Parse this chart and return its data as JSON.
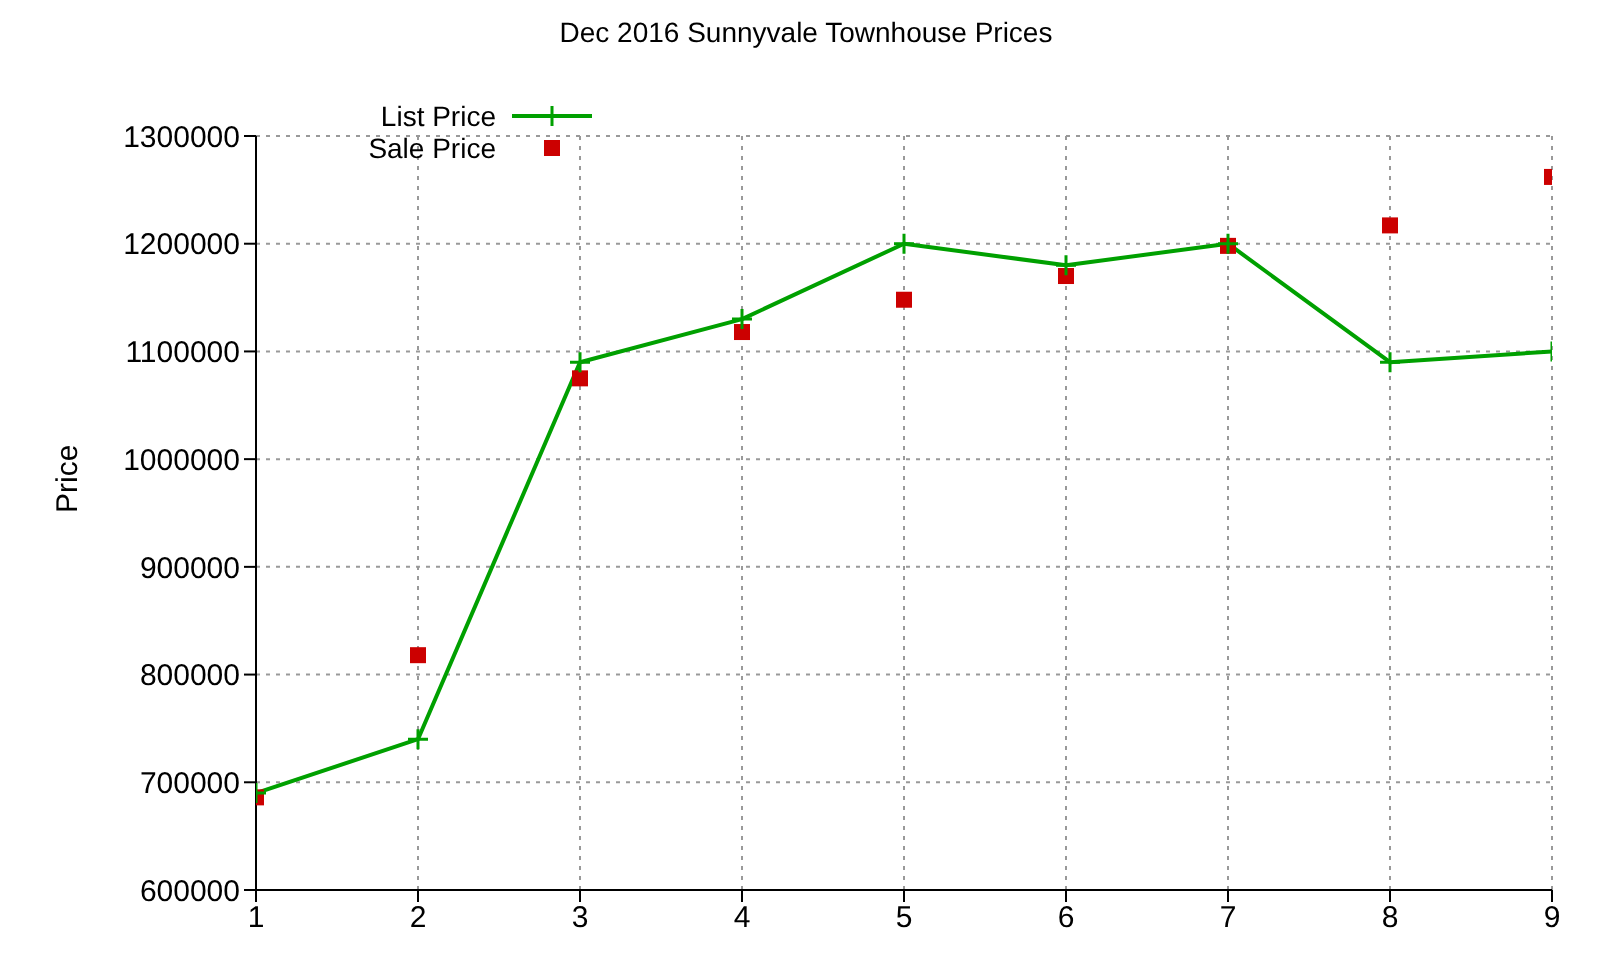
{
  "chart_data": {
    "type": "line",
    "title": "Dec 2016 Sunnyvale Townhouse Prices",
    "ylabel": "Price",
    "x": [
      1,
      2,
      3,
      4,
      5,
      6,
      7,
      8,
      9
    ],
    "xlim": [
      1,
      9
    ],
    "xticks": [
      1,
      2,
      3,
      4,
      5,
      6,
      7,
      8,
      9
    ],
    "ylim": [
      600000,
      1300000
    ],
    "yticks": [
      600000,
      700000,
      800000,
      900000,
      1000000,
      1100000,
      1200000,
      1300000
    ],
    "grid": true,
    "legend": "top left",
    "series": [
      {
        "name": "List Price",
        "color": "#00a000",
        "marker": "cross",
        "values": [
          690000,
          740000,
          1090000,
          1130000,
          1200000,
          1180000,
          1200000,
          1090000,
          1100000
        ]
      },
      {
        "name": "Sale Price",
        "type": "scatter",
        "color": "#cc0000",
        "marker": "square",
        "values": [
          686000,
          818000,
          1075000,
          1118000,
          1148000,
          1170000,
          1198000,
          1217000,
          1262000
        ]
      }
    ]
  }
}
